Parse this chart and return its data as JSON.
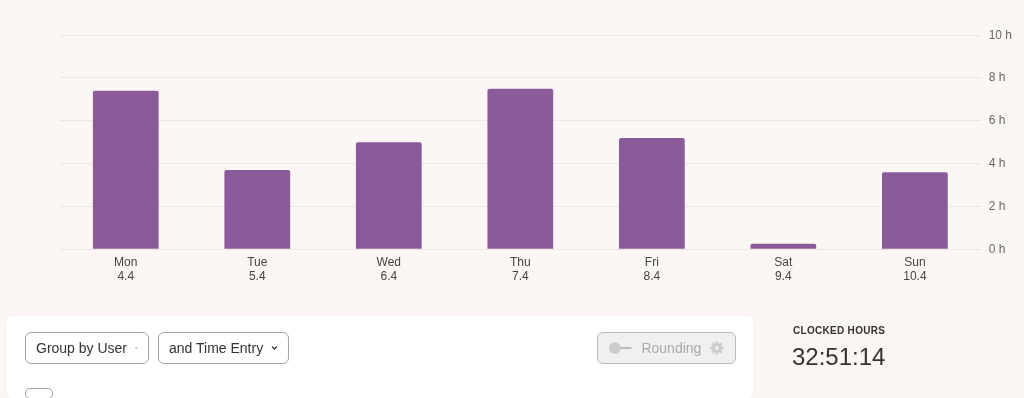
{
  "chart_data": {
    "type": "bar",
    "categories": [
      "Mon\n4.4",
      "Tue\n5.4",
      "Wed\n6.4",
      "Thu\n7.4",
      "Fri\n8.4",
      "Sat\n9.4",
      "Sun\n10.4"
    ],
    "values": [
      7.4,
      3.7,
      5.0,
      7.5,
      5.2,
      0.25,
      3.6
    ],
    "color": "#8a5a9a",
    "ylim": [
      0,
      10
    ],
    "yticks": [
      {
        "value": 0,
        "label": "0 h"
      },
      {
        "value": 2,
        "label": "2 h"
      },
      {
        "value": 4,
        "label": "4 h"
      },
      {
        "value": 6,
        "label": "6 h"
      },
      {
        "value": 8,
        "label": "8 h"
      },
      {
        "value": 10,
        "label": "10 h"
      }
    ],
    "grid": "y",
    "annotations": [
      "Group by User",
      "and Time Entry",
      "Rounding",
      "CLOCKED HOURS",
      "32:51:14"
    ]
  }
}
